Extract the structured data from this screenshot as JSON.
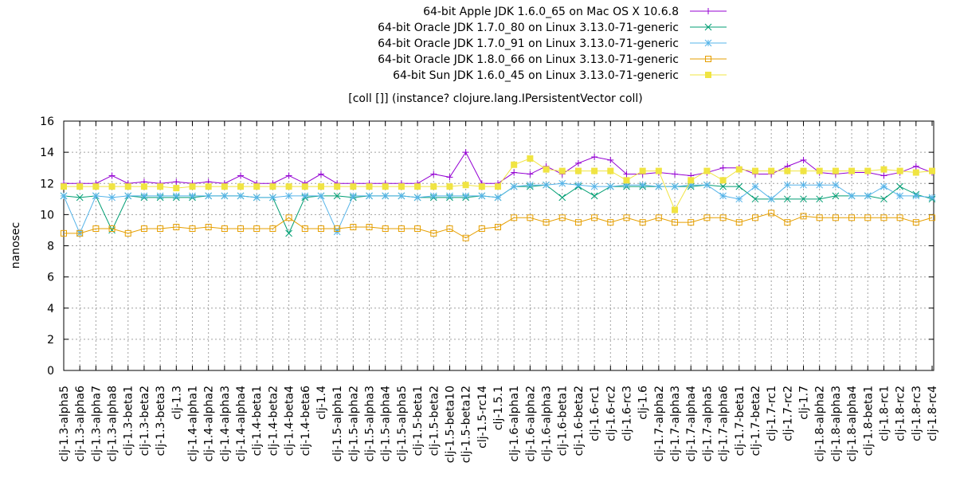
{
  "chart_data": {
    "type": "line",
    "title": "[coll []] (instance? clojure.lang.IPersistentVector coll)",
    "xlabel": "",
    "ylabel": "nanosec",
    "ylim": [
      0,
      16
    ],
    "yticks": [
      0,
      2,
      4,
      6,
      8,
      10,
      12,
      14,
      16
    ],
    "grid": true,
    "legend_position": "top-right",
    "categories": [
      "clj-1.3-alpha5",
      "clj-1.3-alpha6",
      "clj-1.3-alpha7",
      "clj-1.3-alpha8",
      "clj-1.3-beta1",
      "clj-1.3-beta2",
      "clj-1.3-beta3",
      "clj-1.3",
      "clj-1.4-alpha1",
      "clj-1.4-alpha2",
      "clj-1.4-alpha3",
      "clj-1.4-alpha4",
      "clj-1.4-beta1",
      "clj-1.4-beta2",
      "clj-1.4-beta4",
      "clj-1.4-beta6",
      "clj-1.4",
      "clj-1.5-alpha1",
      "clj-1.5-alpha2",
      "clj-1.5-alpha3",
      "clj-1.5-alpha4",
      "clj-1.5-alpha5",
      "clj-1.5-beta1",
      "clj-1.5-beta2",
      "clj-1.5-beta10",
      "clj-1.5-beta12",
      "clj-1.5-rc14",
      "clj-1.5.1",
      "clj-1.6-alpha1",
      "clj-1.6-alpha2",
      "clj-1.6-alpha3",
      "clj-1.6-beta1",
      "clj-1.6-beta2",
      "clj-1.6-rc1",
      "clj-1.6-rc2",
      "clj-1.6-rc3",
      "clj-1.6",
      "clj-1.7-alpha2",
      "clj-1.7-alpha3",
      "clj-1.7-alpha4",
      "clj-1.7-alpha5",
      "clj-1.7-alpha6",
      "clj-1.7-beta1",
      "clj-1.7-beta2",
      "clj-1.7-rc1",
      "clj-1.7-rc2",
      "clj-1.7",
      "clj-1.8-alpha2",
      "clj-1.8-alpha3",
      "clj-1.8-alpha4",
      "clj-1.8-beta1",
      "clj-1.8-rc1",
      "clj-1.8-rc2",
      "clj-1.8-rc3",
      "clj-1.8-rc4"
    ],
    "series": [
      {
        "name": "64-bit Apple JDK 1.6.0_65 on Mac OS X 10.6.8",
        "color": "#9400d3",
        "marker": "plus",
        "values": [
          12.0,
          12.0,
          12.0,
          12.5,
          12.0,
          12.1,
          12.0,
          12.1,
          12.0,
          12.1,
          12.0,
          12.5,
          12.0,
          12.0,
          12.5,
          12.0,
          12.6,
          12.0,
          12.0,
          12.0,
          12.0,
          12.0,
          12.0,
          12.6,
          12.4,
          14.0,
          12.0,
          12.0,
          12.7,
          12.6,
          13.1,
          12.6,
          13.3,
          13.7,
          13.5,
          12.6,
          12.6,
          12.7,
          12.6,
          12.5,
          12.7,
          13.0,
          13.0,
          12.6,
          12.6,
          13.1,
          13.5,
          12.7,
          12.6,
          12.7,
          12.7,
          12.5,
          12.7,
          13.1,
          12.7
        ]
      },
      {
        "name": "64-bit Oracle JDK 1.7.0_80 on Linux 3.13.0-71-generic",
        "color": "#009e73",
        "marker": "x",
        "values": [
          11.2,
          11.1,
          11.2,
          9.0,
          11.2,
          11.1,
          11.1,
          11.1,
          11.1,
          11.2,
          11.2,
          11.2,
          11.1,
          11.1,
          8.8,
          11.1,
          11.2,
          11.2,
          11.1,
          11.2,
          11.2,
          11.2,
          11.1,
          11.1,
          11.1,
          11.1,
          11.2,
          11.1,
          11.8,
          11.8,
          11.9,
          11.1,
          11.8,
          11.2,
          11.8,
          11.8,
          11.8,
          11.8,
          11.8,
          11.8,
          11.9,
          11.8,
          11.8,
          11.0,
          11.0,
          11.0,
          11.0,
          11.0,
          11.2,
          11.2,
          11.2,
          11.0,
          11.8,
          11.3,
          11.0
        ]
      },
      {
        "name": "64-bit Oracle JDK 1.7.0_91 on Linux 3.13.0-71-generic",
        "color": "#56b4e9",
        "marker": "star",
        "values": [
          11.2,
          8.8,
          11.2,
          11.1,
          11.2,
          11.2,
          11.2,
          11.2,
          11.2,
          11.2,
          11.2,
          11.2,
          11.1,
          11.1,
          11.2,
          11.2,
          11.2,
          8.9,
          11.2,
          11.2,
          11.2,
          11.2,
          11.1,
          11.2,
          11.2,
          11.2,
          11.2,
          11.1,
          11.8,
          11.9,
          11.9,
          12.0,
          11.9,
          11.8,
          11.8,
          11.9,
          11.9,
          11.8,
          11.8,
          11.9,
          11.9,
          11.2,
          11.0,
          11.8,
          11.0,
          11.9,
          11.9,
          11.9,
          11.9,
          11.2,
          11.2,
          11.8,
          11.2,
          11.2,
          11.1
        ]
      },
      {
        "name": "64-bit Oracle JDK 1.8.0_66 on Linux 3.13.0-71-generic",
        "color": "#e69f00",
        "marker": "square-open",
        "values": [
          8.8,
          8.8,
          9.1,
          9.1,
          8.8,
          9.1,
          9.1,
          9.2,
          9.1,
          9.2,
          9.1,
          9.1,
          9.1,
          9.1,
          9.8,
          9.1,
          9.1,
          9.1,
          9.2,
          9.2,
          9.1,
          9.1,
          9.1,
          8.8,
          9.1,
          8.5,
          9.1,
          9.2,
          9.8,
          9.8,
          9.5,
          9.8,
          9.5,
          9.8,
          9.5,
          9.8,
          9.5,
          9.8,
          9.5,
          9.5,
          9.8,
          9.8,
          9.5,
          9.8,
          10.1,
          9.5,
          9.9,
          9.8,
          9.8,
          9.8,
          9.8,
          9.8,
          9.8,
          9.5,
          9.8
        ]
      },
      {
        "name": "64-bit Sun JDK 1.6.0_45 on Linux 3.13.0-71-generic",
        "color": "#f0e442",
        "marker": "square-filled",
        "values": [
          11.8,
          11.8,
          11.8,
          11.8,
          11.8,
          11.8,
          11.8,
          11.7,
          11.8,
          11.8,
          11.8,
          11.8,
          11.8,
          11.8,
          11.8,
          11.8,
          11.8,
          11.8,
          11.8,
          11.8,
          11.8,
          11.8,
          11.8,
          11.8,
          11.8,
          11.9,
          11.8,
          11.8,
          13.2,
          13.6,
          12.9,
          12.8,
          12.8,
          12.8,
          12.8,
          12.2,
          12.8,
          12.8,
          10.3,
          12.2,
          12.8,
          12.2,
          12.9,
          12.8,
          12.8,
          12.8,
          12.8,
          12.8,
          12.8,
          12.8,
          12.8,
          12.9,
          12.8,
          12.7,
          12.8
        ]
      }
    ]
  }
}
